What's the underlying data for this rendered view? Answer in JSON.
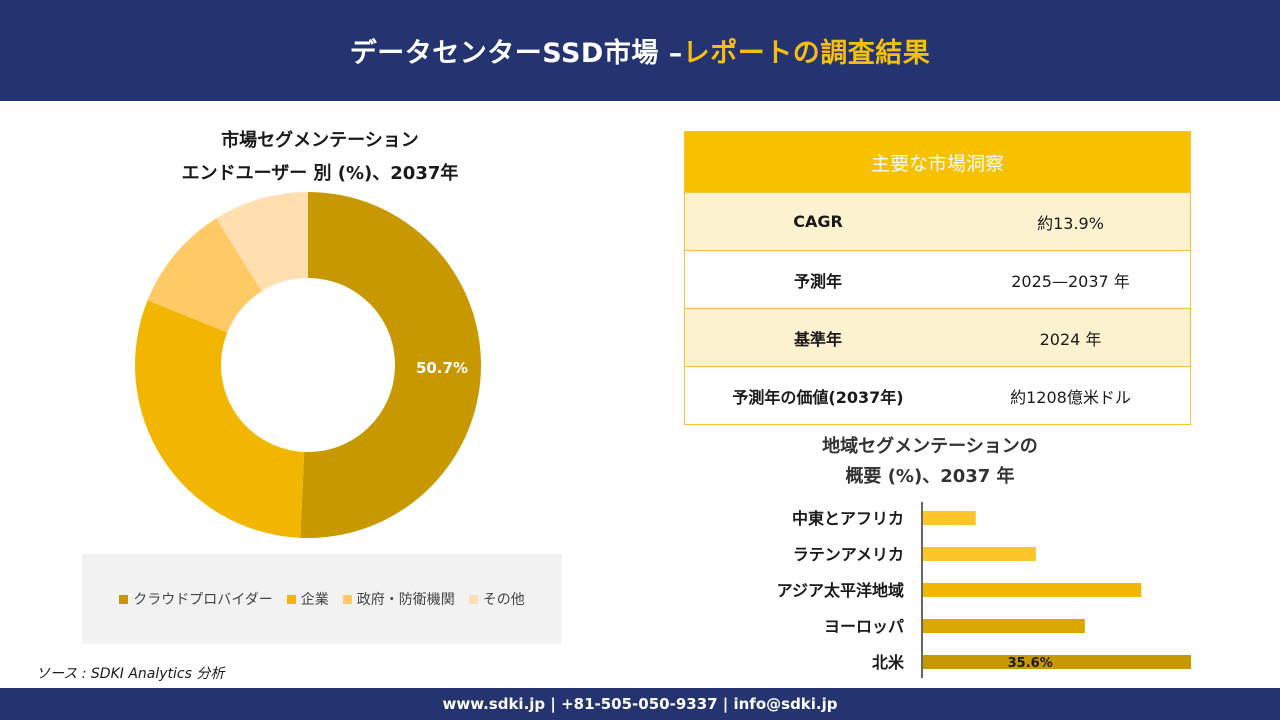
{
  "header": {
    "title_main": "データセンターSSD市場 –",
    "title_accent": "レポートの調査結果"
  },
  "donut": {
    "title_line1": "市場セグメンテーション",
    "title_line2": "エンドユーザー 別 (%)、2037年"
  },
  "insights": {
    "heading": "主要な市場洞察",
    "rows": [
      {
        "label": "CAGR",
        "value": "約13.9%"
      },
      {
        "label": "予測年",
        "value": "2025—2037 年"
      },
      {
        "label": "基準年",
        "value": "2024 年"
      },
      {
        "label": "予測年の価値(2037年)",
        "value": "約1208億米ドル"
      }
    ]
  },
  "bars": {
    "title_line1": "地域セグメンテーションの",
    "title_line2": "概要 (%)、2037 年"
  },
  "source": "ソース : SDKI Analytics 分析",
  "footer": {
    "contact": "www.sdki.jp | +81-505-050-9337 | info@sdki.jp"
  },
  "chart_data": [
    {
      "type": "pie",
      "title": "市場セグメンテーション エンドユーザー 別 (%)、2037年",
      "categories": [
        "クラウドプロバイダー",
        "企業",
        "政府・防衛機関",
        "その他"
      ],
      "values": [
        50.7,
        30.4,
        10.0,
        8.9
      ],
      "data_labels": [
        "50.7%",
        "",
        "",
        ""
      ],
      "colors": [
        "#c89800",
        "#f2b600",
        "#ffc966",
        "#ffdfb0"
      ],
      "legend": "bottom"
    },
    {
      "type": "bar",
      "orientation": "horizontal",
      "title": "地域セグメンテーションの 概要 (%)、2037 年",
      "categories": [
        "中東とアフリカ",
        "ラテンアメリカ",
        "アジア太平洋地域",
        "ヨーロッパ",
        "北米"
      ],
      "values": [
        7.0,
        15.0,
        29.0,
        21.5,
        35.6
      ],
      "data_labels": [
        "",
        "",
        "",
        "",
        "35.6%"
      ],
      "colors": [
        "#fcc52a",
        "#fcc52a",
        "#f2b600",
        "#dba700",
        "#c89800"
      ]
    }
  ]
}
